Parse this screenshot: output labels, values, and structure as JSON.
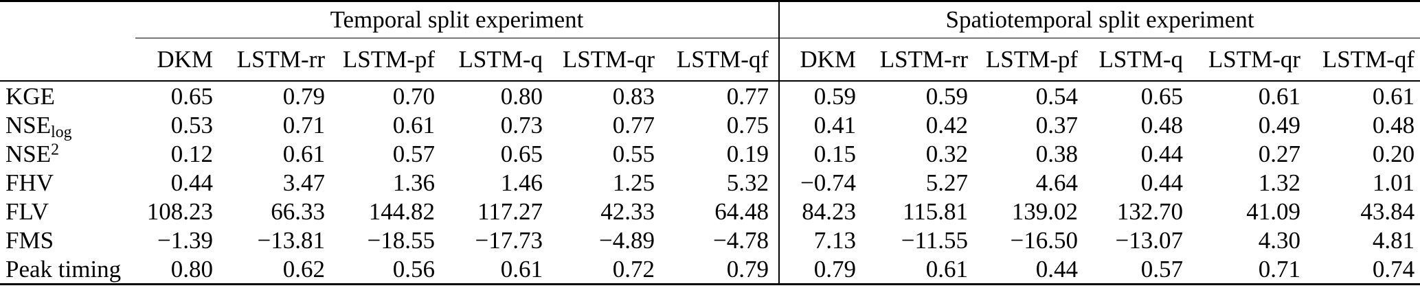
{
  "colors": {
    "text": "#000000",
    "background": "#ffffff",
    "rule": "#000000"
  },
  "table": {
    "groups": [
      {
        "label": "Temporal split experiment"
      },
      {
        "label": "Spatiotemporal split experiment"
      }
    ],
    "columns": [
      "DKM",
      "LSTM-rr",
      "LSTM-pf",
      "LSTM-q",
      "LSTM-qr",
      "LSTM-qf",
      "DKM",
      "LSTM-rr",
      "LSTM-pf",
      "LSTM-q",
      "LSTM-qr",
      "LSTM-qf"
    ],
    "rows": [
      {
        "metric": "KGE",
        "sub": "",
        "sup": "",
        "values": [
          "0.65",
          "0.79",
          "0.70",
          "0.80",
          "0.83",
          "0.77",
          "0.59",
          "0.59",
          "0.54",
          "0.65",
          "0.61",
          "0.61"
        ]
      },
      {
        "metric": "NSE",
        "sub": "log",
        "sup": "",
        "values": [
          "0.53",
          "0.71",
          "0.61",
          "0.73",
          "0.77",
          "0.75",
          "0.41",
          "0.42",
          "0.37",
          "0.48",
          "0.49",
          "0.48"
        ]
      },
      {
        "metric": "NSE",
        "sub": "",
        "sup": "2",
        "values": [
          "0.12",
          "0.61",
          "0.57",
          "0.65",
          "0.55",
          "0.19",
          "0.15",
          "0.32",
          "0.38",
          "0.44",
          "0.27",
          "0.20"
        ]
      },
      {
        "metric": "FHV",
        "sub": "",
        "sup": "",
        "values": [
          "0.44",
          "3.47",
          "1.36",
          "1.46",
          "1.25",
          "5.32",
          "−0.74",
          "5.27",
          "4.64",
          "0.44",
          "1.32",
          "1.01"
        ]
      },
      {
        "metric": "FLV",
        "sub": "",
        "sup": "",
        "values": [
          "108.23",
          "66.33",
          "144.82",
          "117.27",
          "42.33",
          "64.48",
          "84.23",
          "115.81",
          "139.02",
          "132.70",
          "41.09",
          "43.84"
        ]
      },
      {
        "metric": "FMS",
        "sub": "",
        "sup": "",
        "values": [
          "−1.39",
          "−13.81",
          "−18.55",
          "−17.73",
          "−4.89",
          "−4.78",
          "7.13",
          "−11.55",
          "−16.50",
          "−13.07",
          "4.30",
          "4.81"
        ]
      },
      {
        "metric": "Peak timing",
        "sub": "",
        "sup": "",
        "values": [
          "0.80",
          "0.62",
          "0.56",
          "0.61",
          "0.72",
          "0.79",
          "0.79",
          "0.61",
          "0.44",
          "0.57",
          "0.71",
          "0.74"
        ]
      }
    ]
  }
}
